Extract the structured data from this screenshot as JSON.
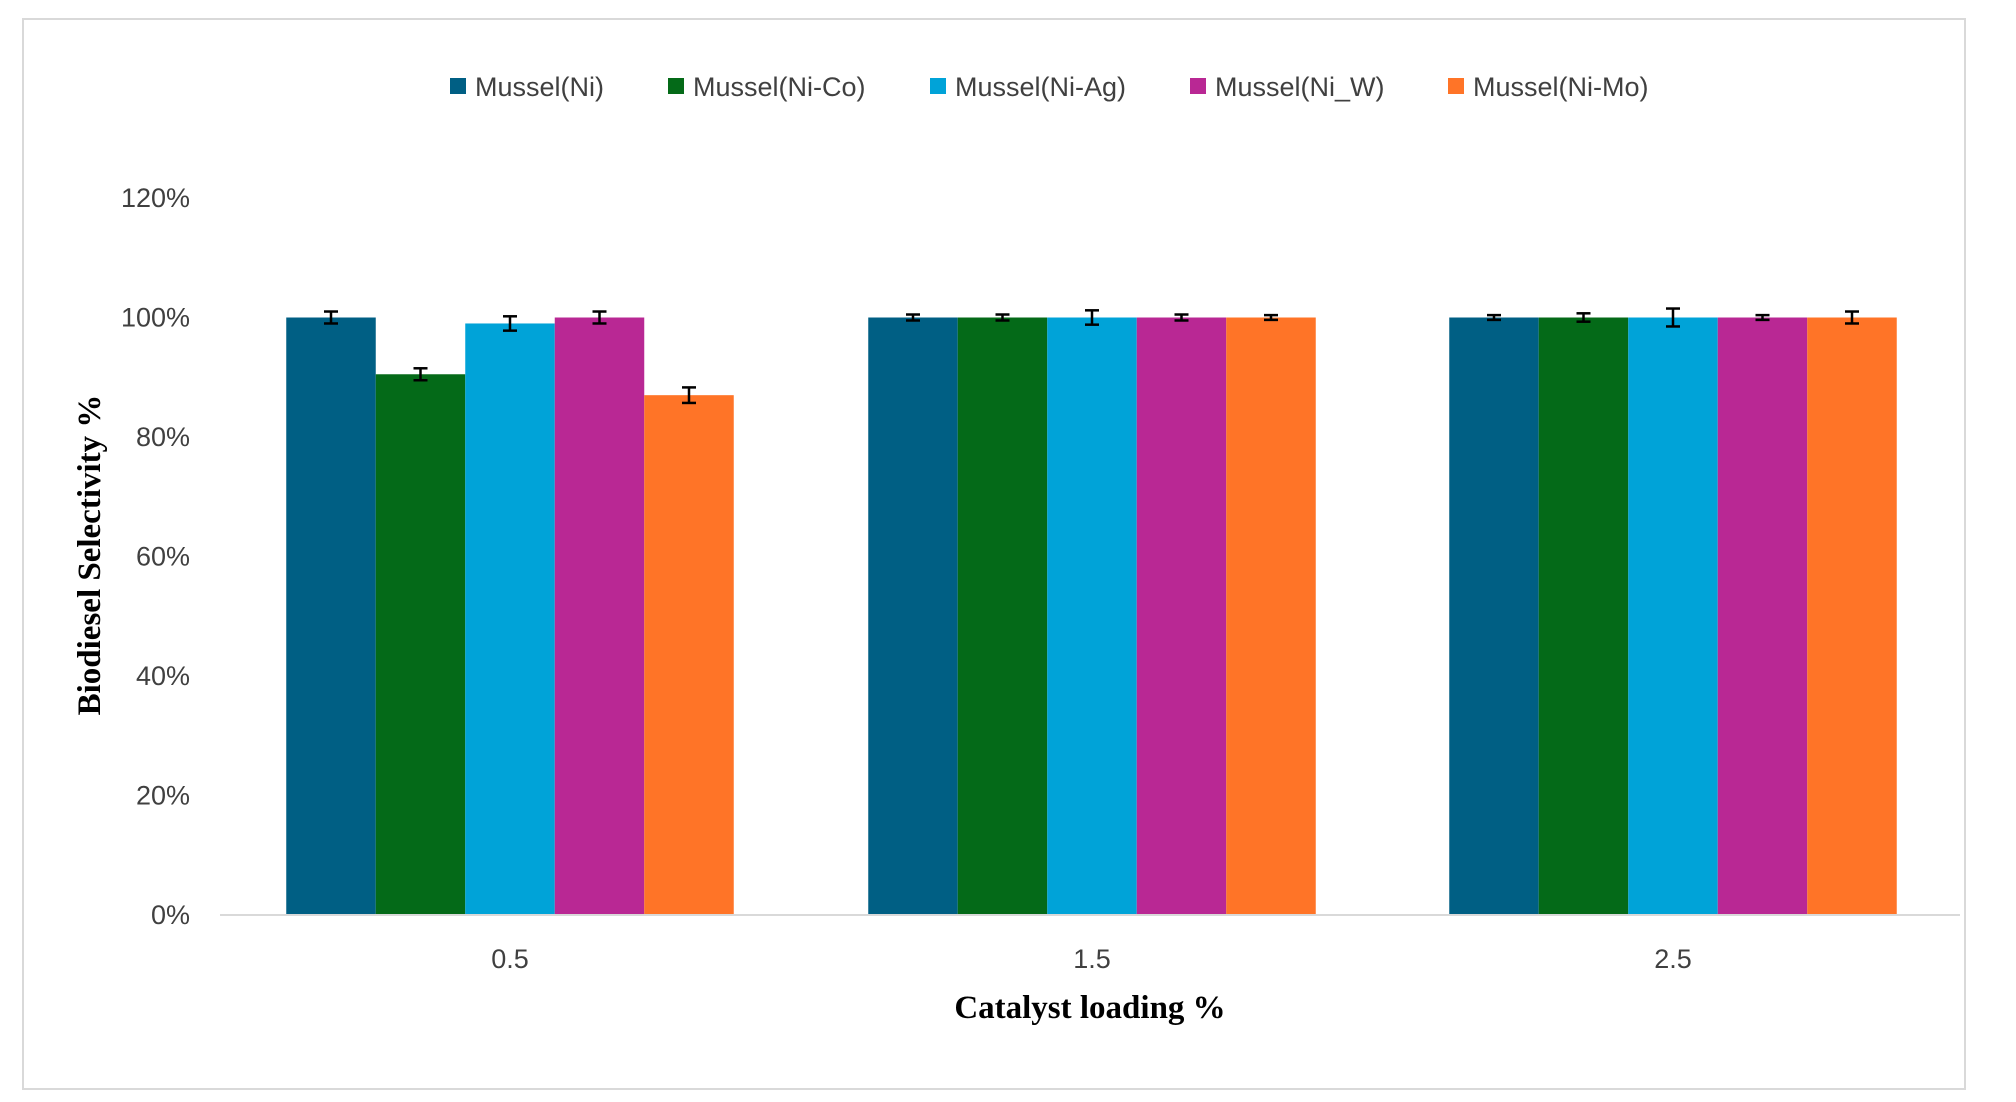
{
  "chart_data": {
    "type": "bar",
    "title": "",
    "xlabel": "Catalyst loading %",
    "ylabel": "Biodiesel Selectivity %",
    "categories": [
      "0.5",
      "1.5",
      "2.5"
    ],
    "ylim": [
      0,
      1.2
    ],
    "yticks": [
      {
        "value": 0,
        "label": "0%"
      },
      {
        "value": 0.2,
        "label": "20%"
      },
      {
        "value": 0.4,
        "label": "40%"
      },
      {
        "value": 0.6,
        "label": "60%"
      },
      {
        "value": 0.8,
        "label": "80%"
      },
      {
        "value": 1.0,
        "label": "100%"
      },
      {
        "value": 1.2,
        "label": "120%"
      }
    ],
    "grid": false,
    "legend_position": "top",
    "error_bars": true,
    "series": [
      {
        "name": "Mussel(Ni)",
        "color": "#005f84",
        "values": [
          1.0,
          1.0,
          1.0
        ],
        "errors": [
          0.01,
          0.005,
          0.004
        ]
      },
      {
        "name": "Mussel(Ni-Co)",
        "color": "#046a18",
        "values": [
          0.905,
          1.0,
          1.0
        ],
        "errors": [
          0.01,
          0.005,
          0.007
        ]
      },
      {
        "name": "Mussel(Ni-Ag)",
        "color": "#00a3d8",
        "values": [
          0.99,
          1.0,
          1.0
        ],
        "errors": [
          0.012,
          0.012,
          0.015
        ]
      },
      {
        "name": "Mussel(Ni_W)",
        "color": "#b92894",
        "values": [
          1.0,
          1.0,
          1.0
        ],
        "errors": [
          0.01,
          0.005,
          0.004
        ]
      },
      {
        "name": "Mussel(Ni-Mo)",
        "color": "#ff7427",
        "values": [
          0.87,
          1.0,
          1.0
        ],
        "errors": [
          0.013,
          0.004,
          0.01
        ]
      }
    ]
  }
}
